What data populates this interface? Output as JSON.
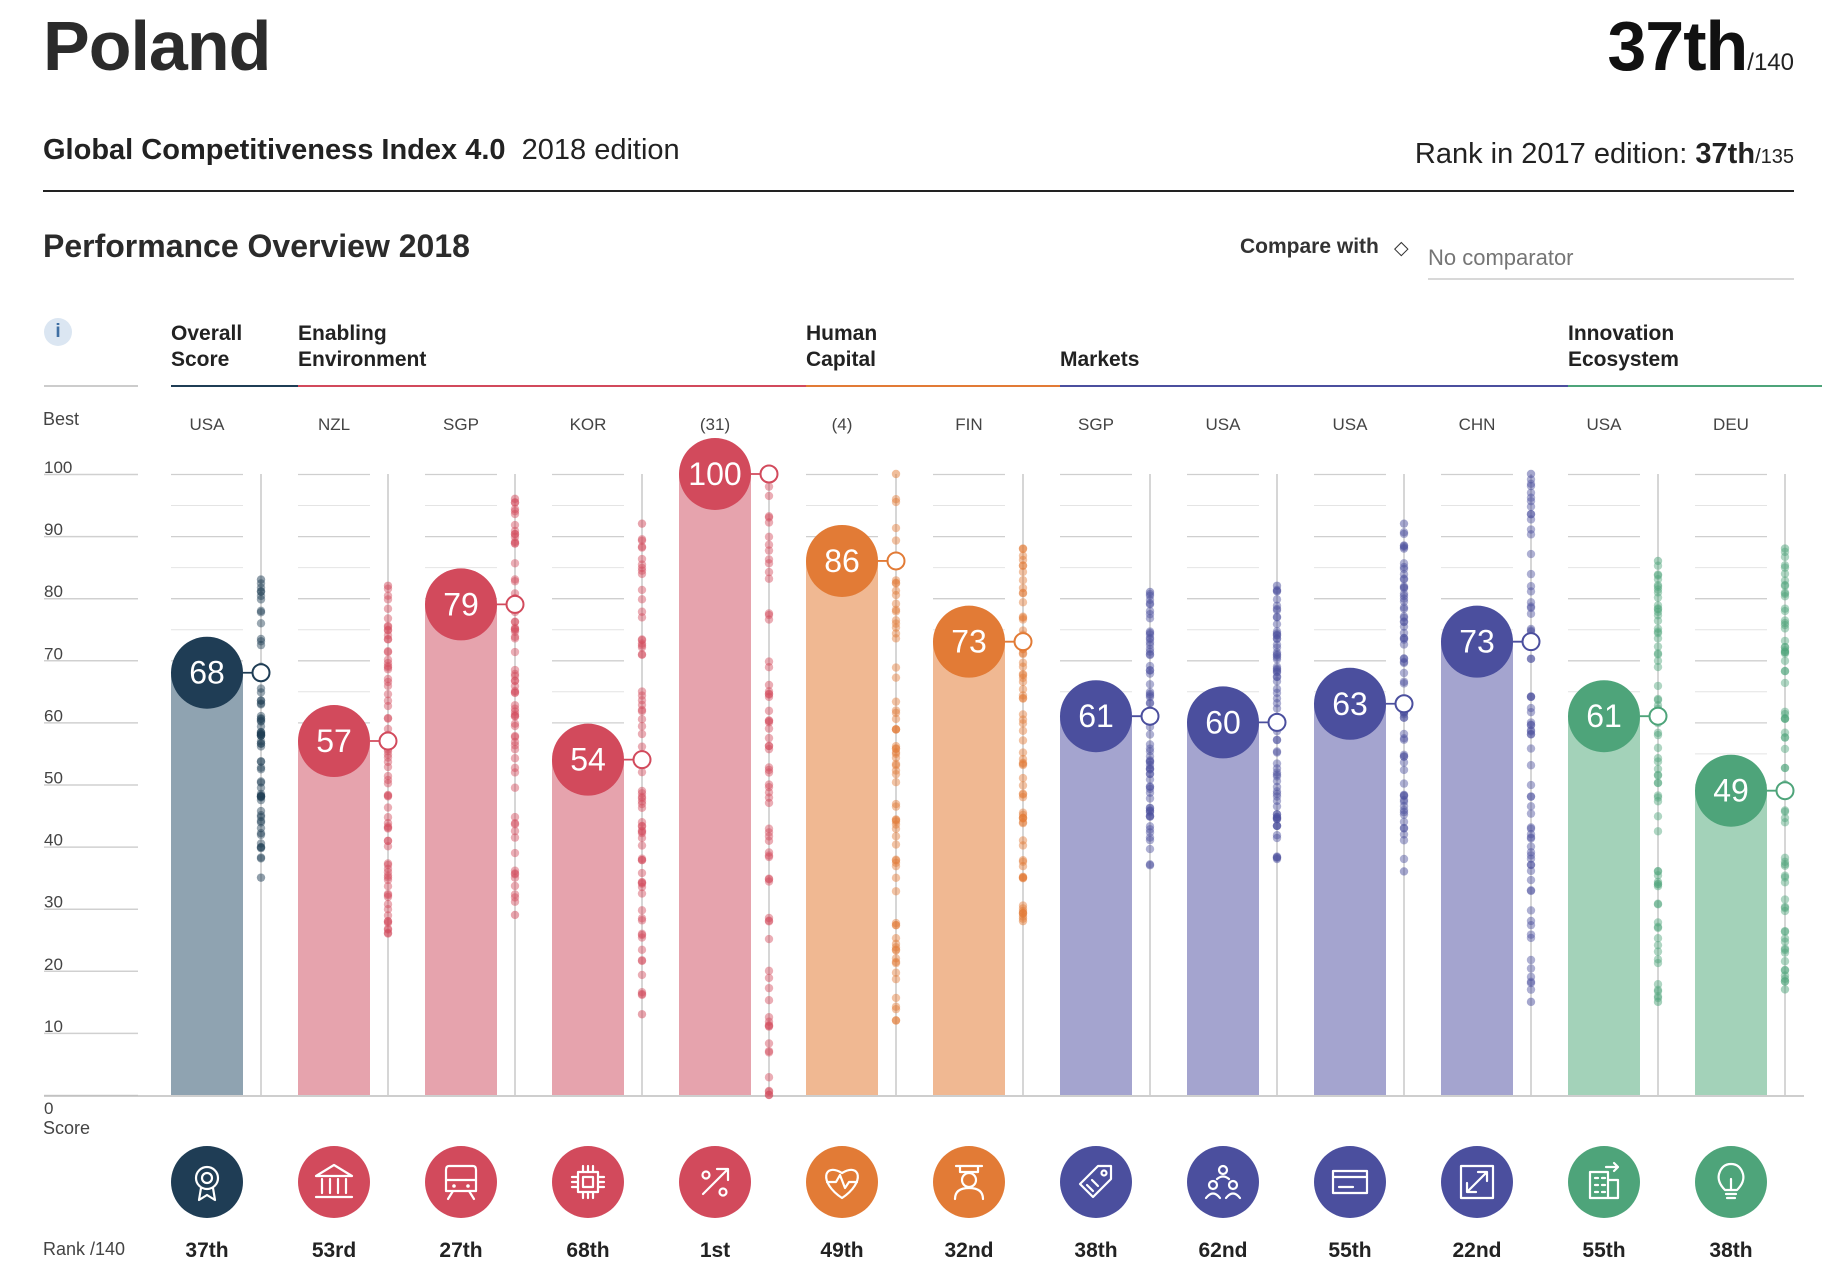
{
  "header": {
    "country": "Poland",
    "rank": "37th",
    "rank_of": "/140",
    "index_name": "Global Competitiveness Index 4.0",
    "edition": "2018 edition",
    "rank2017_label": "Rank in 2017 edition:",
    "rank2017_value": "37th",
    "rank2017_of": "/135"
  },
  "overview": {
    "title": "Performance Overview 2018",
    "compare_label": "Compare with",
    "compare_icon": "diamond-icon",
    "compare_placeholder": "No comparator"
  },
  "info_icon": "i",
  "axis": {
    "best_label": "Best",
    "score_label": "Score",
    "rank_label": "Rank /140"
  },
  "groups": [
    {
      "name": "Overall Score",
      "lines": [
        "Overall",
        "Score"
      ],
      "color": "#1f3d55"
    },
    {
      "name": "Enabling Environment",
      "lines": [
        "Enabling",
        "Environment"
      ],
      "color": "#d24a5c"
    },
    {
      "name": "Human Capital",
      "lines": [
        "Human",
        "Capital"
      ],
      "color": "#e27b36"
    },
    {
      "name": "Markets",
      "lines": [
        "Markets"
      ],
      "color": "#4b4f9e"
    },
    {
      "name": "Innovation Ecosystem",
      "lines": [
        "Innovation",
        "Ecosystem"
      ],
      "color": "#4ea47a"
    }
  ],
  "chart_data": {
    "type": "bar",
    "ylim": [
      0,
      100
    ],
    "yticks": [
      0,
      10,
      20,
      30,
      40,
      50,
      60,
      70,
      80,
      90,
      100
    ],
    "categories": [
      "Overall Score",
      "Institutions",
      "Infrastructure",
      "ICT adoption",
      "Macroeconomic stability",
      "Health",
      "Skills",
      "Product market",
      "Labour market",
      "Financial system",
      "Market size",
      "Business dynamism",
      "Innovation capability"
    ],
    "series": [
      {
        "values": [
          68,
          57,
          79,
          54,
          100,
          86,
          73,
          61,
          60,
          63,
          73,
          61,
          49
        ]
      }
    ],
    "bars": [
      {
        "group": 0,
        "score": 68,
        "best": "USA",
        "rank": "37th",
        "icon": "gear-award-icon",
        "dist": [
          35,
          83
        ]
      },
      {
        "group": 1,
        "score": 57,
        "best": "NZL",
        "rank": "53rd",
        "icon": "institution-building-icon",
        "dist": [
          26,
          82
        ]
      },
      {
        "group": 1,
        "score": 79,
        "best": "SGP",
        "rank": "27th",
        "icon": "train-icon",
        "dist": [
          29,
          96
        ]
      },
      {
        "group": 1,
        "score": 54,
        "best": "KOR",
        "rank": "68th",
        "icon": "chip-icon",
        "dist": [
          13,
          92
        ]
      },
      {
        "group": 1,
        "score": 100,
        "best": "(31)",
        "rank": "1st",
        "icon": "percent-arrow-icon",
        "dist": [
          0,
          100
        ]
      },
      {
        "group": 2,
        "score": 86,
        "best": "(4)",
        "rank": "49th",
        "icon": "heart-pulse-icon",
        "dist": [
          12,
          100
        ]
      },
      {
        "group": 2,
        "score": 73,
        "best": "FIN",
        "rank": "32nd",
        "icon": "graduate-icon",
        "dist": [
          28,
          88
        ]
      },
      {
        "group": 3,
        "score": 61,
        "best": "SGP",
        "rank": "38th",
        "icon": "price-tag-icon",
        "dist": [
          37,
          81
        ]
      },
      {
        "group": 3,
        "score": 60,
        "best": "USA",
        "rank": "62nd",
        "icon": "people-network-icon",
        "dist": [
          38,
          82
        ]
      },
      {
        "group": 3,
        "score": 63,
        "best": "USA",
        "rank": "55th",
        "icon": "credit-card-icon",
        "dist": [
          36,
          92
        ]
      },
      {
        "group": 3,
        "score": 73,
        "best": "CHN",
        "rank": "22nd",
        "icon": "expand-arrows-icon",
        "dist": [
          15,
          100
        ]
      },
      {
        "group": 4,
        "score": 61,
        "best": "USA",
        "rank": "55th",
        "icon": "building-growth-icon",
        "dist": [
          15,
          86
        ]
      },
      {
        "group": 4,
        "score": 49,
        "best": "DEU",
        "rank": "38th",
        "icon": "lightbulb-icon",
        "dist": [
          17,
          88
        ]
      }
    ]
  }
}
